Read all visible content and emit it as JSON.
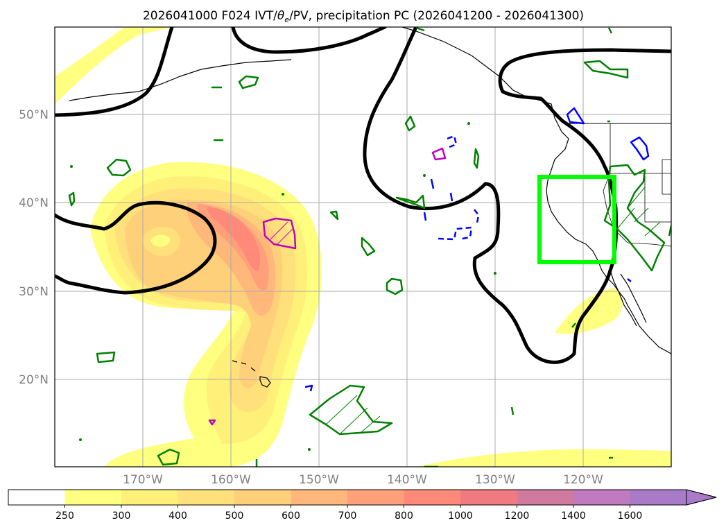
{
  "title": {
    "prefix": "2026041000 F024 IVT/",
    "theta": "θ",
    "sub": "e",
    "suffix": "/PV, precipitation PC (2026041200 - 2026041300)"
  },
  "axes": {
    "lat_labels": [
      "50°N",
      "40°N",
      "30°N",
      "20°N"
    ],
    "lon_labels": [
      "170°W",
      "160°W",
      "150°W",
      "140°W",
      "130°W",
      "120°W"
    ],
    "lat_values": [
      50,
      40,
      30,
      20
    ],
    "lon_values": [
      -170,
      -160,
      -150,
      -140,
      -130,
      -120
    ],
    "extent_lon": [
      -180,
      -110
    ],
    "extent_lat": [
      10,
      60
    ]
  },
  "colorbar": {
    "labels": [
      "250",
      "300",
      "400",
      "500",
      "600",
      "700",
      "800",
      "1000",
      "1200",
      "1400",
      "1600"
    ],
    "colors": [
      "#ffffff",
      "#ffff80",
      "#fff07a",
      "#ffe07a",
      "#ffd07a",
      "#ffb87a",
      "#ffa07a",
      "#ff8a7a",
      "#f07a80",
      "#d07aa0",
      "#c07ac0",
      "#a87ac8"
    ],
    "extend": "max"
  },
  "colors": {
    "mslp": "#000000",
    "theta": "#008000",
    "pv_pos": "#0000ff",
    "pv_neg": "#c000c0",
    "box": "#00ff00"
  }
}
